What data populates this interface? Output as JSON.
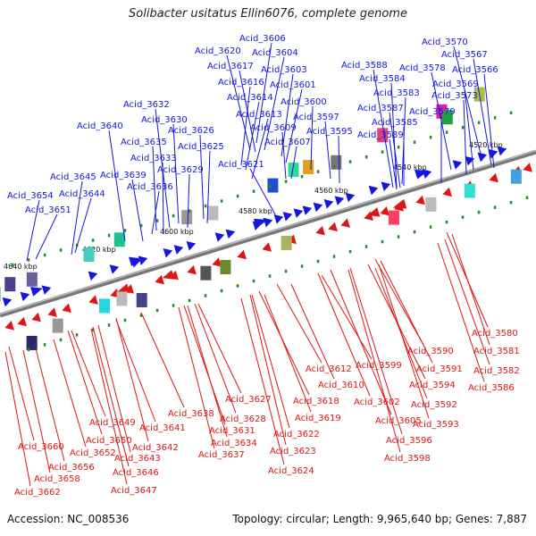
{
  "title": "Solibacter usitatus Ellin6076, complete genome",
  "footer": {
    "accession": "Accession: NC_008536",
    "topology": "Topology: circular; Length: 9,965,640 bp; Genes: 7,887"
  },
  "colors": {
    "forward": "#1515e0",
    "reverse": "#e01515",
    "axis": "#888888"
  },
  "kbp_ticks": [
    "4520 kbp",
    "4540 kbp",
    "4560 kbp",
    "4580 kbp",
    "4600 kbp",
    "4620 kbp",
    "4640 kbp"
  ],
  "top_labels": [
    "Acid_3606",
    "Acid_3570",
    "Acid_3620",
    "Acid_3604",
    "Acid_3567",
    "Acid_3617",
    "Acid_3603",
    "Acid_3588",
    "Acid_3578",
    "Acid_3566",
    "Acid_3616",
    "Acid_3601",
    "Acid_3584",
    "Acid_3569",
    "Acid_3614",
    "Acid_3600",
    "Acid_3583",
    "Acid_3573",
    "Acid_3632",
    "Acid_3613",
    "Acid_3597",
    "Acid_3587",
    "Acid_3579",
    "Acid_3630",
    "Acid_3585",
    "Acid_3640",
    "Acid_3609",
    "Acid_3595",
    "Acid_3626",
    "Acid_3589",
    "Acid_3635",
    "Acid_3607",
    "Acid_3625",
    "Acid_3633",
    "Acid_3629",
    "Acid_3621",
    "Acid_3639",
    "Acid_3645",
    "Acid_3636",
    "Acid_3644",
    "Acid_3654",
    "Acid_3651"
  ],
  "bottom_labels": [
    "Acid_3580",
    "Acid_3581",
    "Acid_3590",
    "Acid_3582",
    "Acid_3599",
    "Acid_3591",
    "Acid_3612",
    "Acid_3586",
    "Acid_3610",
    "Acid_3594",
    "Acid_3618",
    "Acid_3602",
    "Acid_3592",
    "Acid_3627",
    "Acid_3619",
    "Acid_3605",
    "Acid_3593",
    "Acid_3638",
    "Acid_3628",
    "Acid_3649",
    "Acid_3641",
    "Acid_3631",
    "Acid_3622",
    "Acid_3596",
    "Acid_3650",
    "Acid_3634",
    "Acid_3660",
    "Acid_3642",
    "Acid_3652",
    "Acid_3637",
    "Acid_3623",
    "Acid_3598",
    "Acid_3643",
    "Acid_3656",
    "Acid_3646",
    "Acid_3624",
    "Acid_3658",
    "Acid_3647",
    "Acid_3662"
  ]
}
